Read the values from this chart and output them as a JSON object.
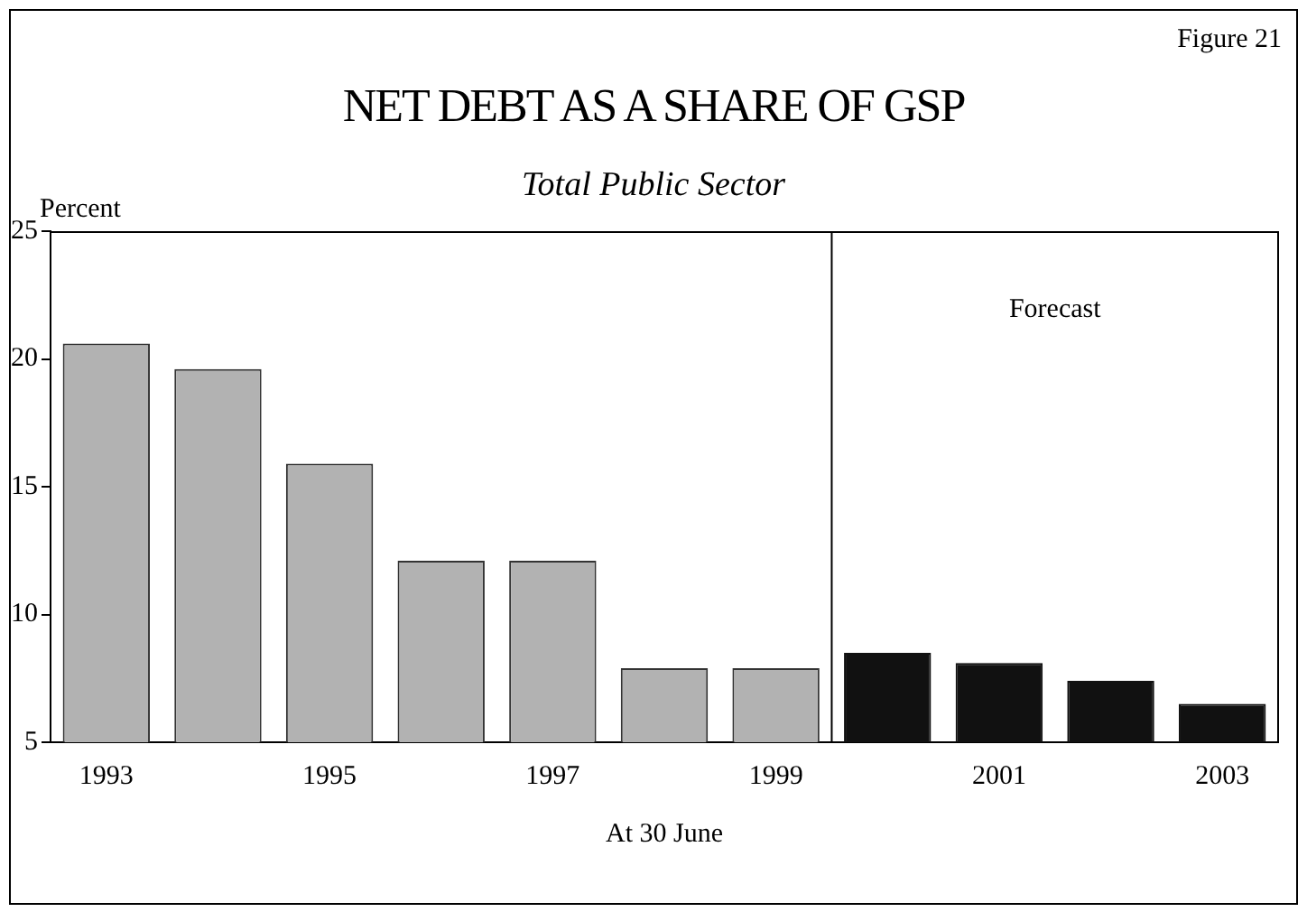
{
  "chart_data": {
    "type": "bar",
    "title": "NET DEBT AS A SHARE OF GSP",
    "subtitle": "Total Public Sector",
    "ylabel": "Percent",
    "xlabel": "At 30 June",
    "annotations": [
      "Figure 21",
      "Forecast"
    ],
    "categories": [
      "1993",
      null,
      "1995",
      null,
      "1997",
      null,
      "1999",
      null,
      "2001",
      null,
      "2003"
    ],
    "values": [
      20.6,
      19.6,
      15.9,
      12.1,
      12.1,
      7.9,
      7.9,
      8.5,
      8.1,
      7.4,
      6.5
    ],
    "colors": [
      "#b2b2b2",
      "#b2b2b2",
      "#b2b2b2",
      "#b2b2b2",
      "#b2b2b2",
      "#b2b2b2",
      "#b2b2b2",
      "#111111",
      "#111111",
      "#111111",
      "#111111"
    ],
    "ylim": [
      5,
      25
    ],
    "yticks": [
      5,
      10,
      15,
      20,
      25
    ],
    "grid": false
  }
}
